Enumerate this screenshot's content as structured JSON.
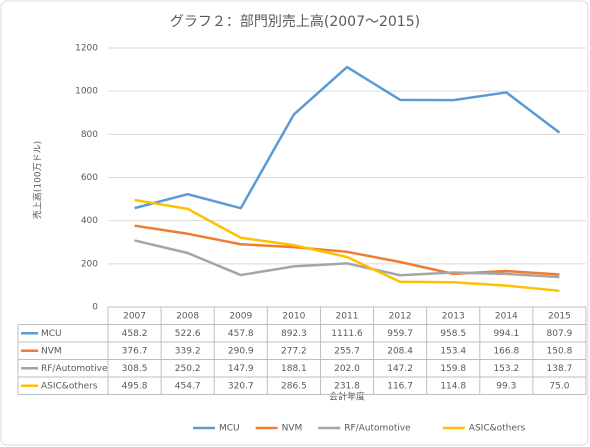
{
  "chart_data": {
    "type": "line",
    "title": "グラフ２：部門別売上高(2007～2015)",
    "y_label": "売上高(100万ドル)",
    "x_label": "会計年度",
    "categories": [
      "2007",
      "2008",
      "2009",
      "2010",
      "2011",
      "2012",
      "2013",
      "2014",
      "2015"
    ],
    "series": [
      {
        "name": "MCU",
        "color": "#5b9bd5",
        "values": [
          458.2,
          522.6,
          457.8,
          892.3,
          1111.6,
          959.7,
          958.5,
          994.1,
          807.9
        ],
        "value_labels": [
          "458.2",
          "522.6",
          "457.8",
          "892.3",
          "1111.6",
          "959.7",
          "958.5",
          "994.1",
          "807.9"
        ]
      },
      {
        "name": "NVM",
        "color": "#ed7d31",
        "values": [
          376.7,
          339.2,
          290.9,
          277.2,
          255.7,
          208.4,
          153.4,
          166.8,
          150.8
        ],
        "value_labels": [
          "376.7",
          "339.2",
          "290.9",
          "277.2",
          "255.7",
          "208.4",
          "153.4",
          "166.8",
          "150.8"
        ]
      },
      {
        "name": "RF/Automotive",
        "color": "#a5a5a5",
        "values": [
          308.5,
          250.2,
          147.9,
          188.1,
          202.0,
          147.2,
          159.8,
          153.2,
          138.7
        ],
        "value_labels": [
          "308.5",
          "250.2",
          "147.9",
          "188.1",
          "202.0",
          "147.2",
          "159.8",
          "153.2",
          "138.7"
        ]
      },
      {
        "name": "ASIC&others",
        "color": "#ffc000",
        "values": [
          495.8,
          454.7,
          320.7,
          286.5,
          231.8,
          116.7,
          114.8,
          99.3,
          75.0
        ],
        "value_labels": [
          "495.8",
          "454.7",
          "320.7",
          "286.5",
          "231.8",
          "116.7",
          "114.8",
          "99.3",
          "75.0"
        ]
      }
    ],
    "ylim": [
      0,
      1200
    ],
    "yticks": [
      0,
      200,
      400,
      600,
      800,
      1000,
      1200
    ],
    "grid": true,
    "legend": "bottom"
  }
}
